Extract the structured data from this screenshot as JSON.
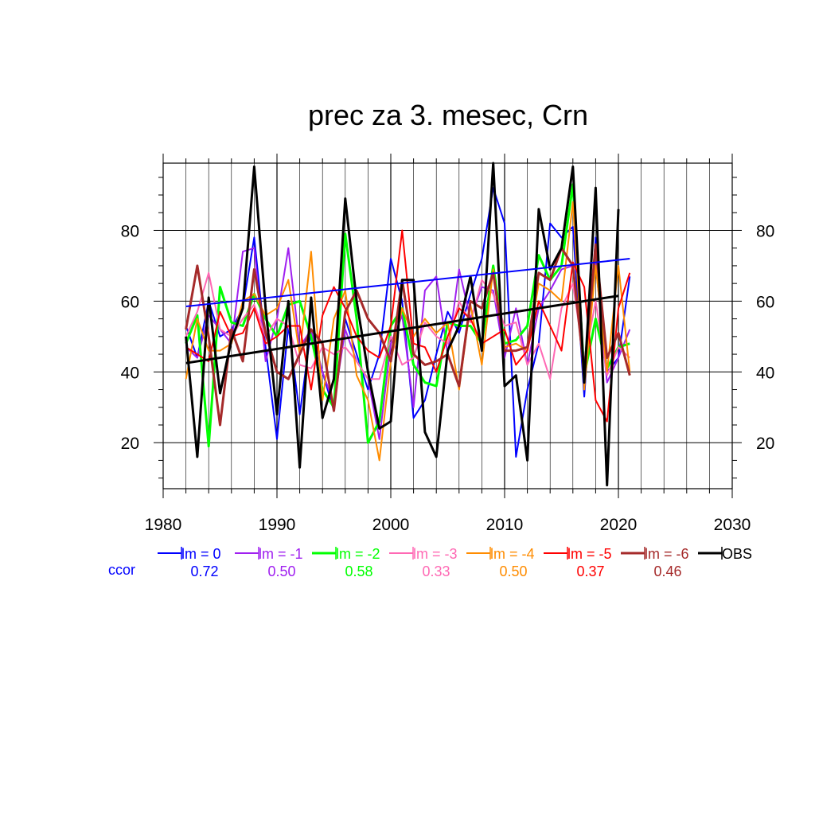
{
  "chart_data": {
    "type": "line",
    "title": "prec za 3. mesec, Crn",
    "xlabel": "",
    "ylabel": "",
    "xlim": [
      1980,
      2030
    ],
    "ylim": [
      7,
      99
    ],
    "x_ticks": [
      1980,
      1990,
      2000,
      2010,
      2020,
      2030
    ],
    "y_ticks": [
      20,
      40,
      60,
      80
    ],
    "grid": true,
    "legend_position": "bottom",
    "ccor_label": "ccor",
    "x": [
      1982,
      1983,
      1984,
      1985,
      1986,
      1987,
      1988,
      1989,
      1990,
      1991,
      1992,
      1993,
      1994,
      1995,
      1996,
      1997,
      1998,
      1999,
      2000,
      2001,
      2002,
      2003,
      2004,
      2005,
      2006,
      2007,
      2008,
      2009,
      2010,
      2011,
      2012,
      2013,
      2014,
      2015,
      2016,
      2017,
      2018,
      2019,
      2020,
      2021
    ],
    "series": [
      {
        "name": "lm = 0",
        "ccor": "0.72",
        "color": "#0000ff",
        "width": 2,
        "values": [
          53,
          44,
          60,
          50,
          52,
          58,
          78,
          47,
          21,
          53,
          28,
          52,
          40,
          29,
          55,
          45,
          35,
          45,
          72,
          60,
          27,
          32,
          45,
          57,
          51,
          62,
          72,
          92,
          82,
          16,
          35,
          48,
          82,
          78,
          81,
          33,
          78,
          40,
          44,
          67
        ],
        "trend": [
          58.5,
          72
        ]
      },
      {
        "name": "lm = -1",
        "ccor": "0.50",
        "color": "#a020f0",
        "width": 2,
        "values": [
          47,
          44,
          56,
          52,
          48,
          74,
          75,
          43,
          55,
          75,
          47,
          52,
          40,
          31,
          52,
          43,
          38,
          21,
          48,
          56,
          30,
          63,
          67,
          45,
          69,
          55,
          64,
          63,
          44,
          58,
          42,
          58,
          63,
          69,
          70,
          39,
          71,
          37,
          44,
          52
        ]
      },
      {
        "name": "lm = -2",
        "ccor": "0.58",
        "color": "#00ff00",
        "width": 3,
        "values": [
          48,
          56,
          19,
          64,
          54,
          53,
          62,
          55,
          50,
          59,
          60,
          50,
          35,
          30,
          79,
          55,
          20,
          26,
          53,
          58,
          42,
          37,
          36,
          54,
          53,
          53,
          48,
          70,
          48,
          49,
          53,
          73,
          66,
          70,
          93,
          39,
          55,
          41,
          47,
          48
        ]
      },
      {
        "name": "lm = -3",
        "ccor": "0.33",
        "color": "#ff69b4",
        "width": 2,
        "values": [
          50,
          57,
          68,
          52,
          50,
          55,
          59,
          50,
          55,
          53,
          42,
          41,
          47,
          45,
          47,
          43,
          38,
          38,
          50,
          42,
          44,
          54,
          50,
          48,
          60,
          54,
          66,
          62,
          53,
          54,
          42,
          48,
          38,
          58,
          65,
          43,
          60,
          39,
          47,
          44
        ]
      },
      {
        "name": "lm = -4",
        "ccor": "0.50",
        "color": "#ff8c00",
        "width": 2,
        "values": [
          38,
          55,
          46,
          46,
          48,
          60,
          62,
          56,
          58,
          66,
          45,
          74,
          32,
          55,
          63,
          39,
          32,
          15,
          43,
          58,
          50,
          55,
          51,
          54,
          35,
          59,
          42,
          69,
          47,
          48,
          46,
          65,
          63,
          60,
          88,
          35,
          70,
          40,
          70,
          40
        ]
      },
      {
        "name": "lm = -5",
        "ccor": "0.37",
        "color": "#ff0000",
        "width": 2,
        "values": [
          47,
          45,
          43,
          57,
          50,
          51,
          58,
          48,
          50,
          53,
          53,
          35,
          56,
          64,
          58,
          50,
          46,
          44,
          53,
          80,
          48,
          47,
          40,
          50,
          58,
          55,
          48,
          50,
          52,
          42,
          46,
          60,
          53,
          46,
          71,
          64,
          32,
          26,
          58,
          68
        ]
      },
      {
        "name": "lm = -6",
        "ccor": "0.46",
        "color": "#a52a2a",
        "width": 3,
        "values": [
          52,
          70,
          50,
          25,
          52,
          43,
          69,
          51,
          40,
          38,
          45,
          52,
          48,
          29,
          57,
          63,
          55,
          51,
          43,
          66,
          45,
          42,
          43,
          45,
          36,
          60,
          58,
          68,
          46,
          46,
          47,
          68,
          66,
          75,
          70,
          40,
          76,
          44,
          51,
          39
        ]
      },
      {
        "name": "OBS",
        "ccor": "",
        "color": "#000000",
        "width": 3,
        "values": [
          50,
          16,
          61,
          34,
          49,
          58,
          98,
          58,
          28,
          60,
          13,
          61,
          27,
          38,
          89,
          60,
          40,
          24,
          26,
          66,
          66,
          23,
          16,
          46,
          53,
          67,
          46,
          99,
          36,
          39,
          15,
          86,
          69,
          75,
          98,
          37,
          92,
          8,
          86,
          null
        ],
        "trend": [
          42.5,
          61.5
        ]
      }
    ]
  }
}
